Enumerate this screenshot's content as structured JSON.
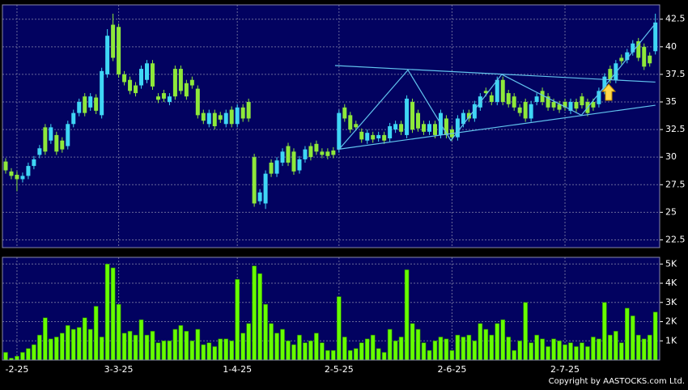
{
  "chart_data": [
    {
      "type": "candlestick",
      "ylim": [
        21.8,
        43.8
      ],
      "yticks": [
        22.5,
        25,
        27.5,
        30,
        32.5,
        35,
        37.5,
        40,
        42.5
      ],
      "grid": true,
      "up_color": "#3fd6f5",
      "down_color": "#8ee83a",
      "open": [
        29.6,
        28.7,
        28.4,
        28.0,
        28.3,
        29.2,
        30.2,
        32.7,
        31.5,
        32.0,
        31.5,
        31.0,
        33.0,
        34.0,
        35.5,
        34.5,
        35.4,
        33.8,
        37.5,
        42.0,
        41.8,
        37.5,
        37.0,
        36.5,
        36.5,
        37.0,
        38.5,
        35.5,
        35.8,
        35.0,
        38.0,
        38.0,
        36.7,
        37.0,
        36.2,
        34.0,
        33.0,
        34.0,
        33.8,
        33.0,
        34.3,
        33.0,
        34.5,
        35.0,
        30.0,
        26.0,
        25.8,
        29.5,
        28.5,
        29.5,
        31.0,
        30.5,
        28.8,
        29.8,
        31.0,
        31.2,
        30.5,
        30.5,
        30.6,
        30.7,
        34.5,
        33.8,
        33.0,
        32.3,
        31.5,
        32.0,
        31.7,
        32.0,
        31.7,
        32.5,
        33.0,
        32.0,
        35.0,
        34.0,
        33.0,
        32.3,
        33.0,
        32.0,
        33.5,
        32.5,
        31.8,
        33.0,
        34.0,
        33.5,
        34.5,
        36.0,
        35.6,
        35.0,
        37.0,
        35.8,
        35.5,
        34.5,
        35.0,
        33.5,
        35.0,
        36.0,
        35.5,
        35.0,
        34.8,
        35.0,
        34.2,
        35.0,
        35.5,
        35.0,
        35.0,
        34.8,
        36.0,
        38.0,
        37.0,
        39.0,
        38.8,
        39.5,
        40.5,
        40.0,
        39.2,
        39.6
      ],
      "high": [
        29.9,
        29.0,
        28.7,
        28.6,
        29.5,
        30.1,
        31.1,
        33.0,
        33.0,
        32.3,
        31.8,
        33.3,
        34.3,
        35.3,
        35.8,
        35.8,
        35.7,
        38.1,
        41.6,
        43.0,
        42.1,
        37.8,
        37.3,
        36.8,
        38.3,
        38.8,
        38.8,
        35.8,
        36.1,
        35.8,
        38.3,
        38.3,
        37.0,
        37.3,
        36.5,
        34.3,
        34.3,
        34.3,
        34.1,
        34.3,
        34.6,
        34.8,
        34.8,
        35.3,
        30.3,
        27.1,
        28.8,
        29.8,
        30.0,
        30.8,
        31.3,
        30.8,
        30.1,
        31.0,
        31.3,
        31.5,
        30.8,
        30.8,
        30.9,
        34.3,
        34.8,
        34.1,
        33.3,
        32.6,
        32.5,
        32.3,
        32.3,
        32.3,
        33.1,
        33.3,
        33.3,
        35.6,
        35.3,
        34.3,
        33.3,
        33.3,
        33.3,
        34.3,
        33.8,
        32.8,
        33.8,
        34.3,
        34.3,
        35.1,
        35.8,
        36.3,
        35.9,
        37.3,
        37.3,
        36.1,
        35.8,
        34.8,
        35.3,
        35.1,
        35.8,
        36.3,
        35.8,
        35.3,
        35.1,
        35.3,
        35.3,
        35.3,
        35.8,
        35.3,
        35.3,
        36.3,
        37.6,
        38.3,
        38.8,
        39.3,
        39.8,
        40.6,
        40.8,
        40.3,
        39.5,
        43.0
      ],
      "low": [
        28.5,
        28.0,
        26.9,
        27.7,
        28.0,
        28.9,
        29.9,
        30.2,
        31.2,
        30.2,
        30.4,
        30.7,
        32.7,
        33.7,
        33.7,
        34.2,
        33.9,
        33.5,
        37.2,
        38.7,
        37.2,
        36.5,
        35.7,
        35.5,
        36.2,
        36.7,
        36.1,
        34.9,
        35.0,
        34.7,
        35.2,
        35.7,
        35.2,
        36.2,
        33.5,
        33.0,
        32.7,
        32.5,
        33.1,
        32.7,
        32.7,
        32.7,
        33.2,
        33.2,
        25.5,
        25.7,
        25.3,
        28.2,
        28.2,
        29.2,
        29.2,
        28.4,
        28.5,
        29.5,
        29.7,
        30.2,
        29.9,
        29.8,
        29.9,
        30.4,
        33.2,
        32.2,
        32.4,
        31.3,
        31.2,
        31.3,
        31.4,
        31.2,
        31.4,
        32.2,
        32.0,
        31.7,
        32.2,
        32.3,
        32.0,
        32.0,
        31.7,
        31.7,
        31.7,
        31.5,
        31.5,
        32.7,
        33.2,
        33.2,
        34.2,
        35.5,
        34.7,
        34.7,
        34.7,
        34.5,
        34.2,
        33.7,
        33.2,
        33.2,
        34.7,
        34.7,
        34.2,
        34.2,
        34.0,
        34.2,
        33.9,
        34.1,
        34.4,
        33.7,
        34.2,
        34.5,
        35.7,
        36.7,
        36.7,
        38.4,
        38.5,
        39.2,
        38.7,
        37.9,
        38.2,
        39.3
      ],
      "close": [
        28.8,
        28.3,
        28.0,
        28.3,
        29.2,
        29.8,
        30.8,
        30.5,
        32.7,
        30.5,
        30.7,
        33.0,
        34.0,
        35.0,
        34.0,
        35.5,
        34.2,
        37.8,
        41.0,
        39.0,
        37.5,
        36.8,
        36.0,
        35.8,
        38.0,
        38.5,
        36.4,
        35.2,
        35.3,
        35.5,
        35.5,
        36.0,
        35.5,
        36.5,
        33.8,
        33.3,
        34.0,
        32.8,
        33.4,
        34.0,
        33.0,
        34.5,
        33.5,
        33.5,
        25.8,
        26.8,
        28.5,
        28.5,
        29.7,
        30.5,
        29.5,
        28.7,
        29.8,
        30.7,
        30.0,
        30.5,
        30.2,
        30.1,
        30.2,
        34.0,
        33.5,
        32.5,
        32.7,
        31.6,
        32.2,
        31.6,
        32.0,
        31.5,
        32.8,
        33.0,
        32.3,
        35.3,
        32.5,
        32.6,
        32.3,
        33.0,
        32.0,
        34.0,
        32.0,
        31.8,
        33.5,
        34.0,
        33.5,
        34.8,
        35.5,
        35.8,
        35.0,
        37.0,
        35.0,
        34.8,
        34.5,
        34.0,
        33.5,
        34.8,
        35.5,
        35.0,
        34.5,
        34.5,
        34.3,
        34.5,
        35.0,
        34.4,
        34.7,
        34.0,
        34.5,
        36.0,
        37.3,
        37.0,
        38.5,
        38.7,
        39.5,
        40.3,
        39.0,
        38.2,
        38.5,
        42.2
      ],
      "trendline_color": "#62c4ee",
      "trendlines": [
        {
          "points": [
            [
              58.3,
              38.3
            ],
            [
              115,
              36.8
            ]
          ]
        },
        {
          "points": [
            [
              58.7,
              30.7
            ],
            [
              115,
              34.7
            ]
          ]
        },
        {
          "points": [
            [
              59,
              30.7
            ],
            [
              71.2,
              37.9
            ],
            [
              78.8,
              31.5
            ],
            [
              87.8,
              37.5
            ],
            [
              101.9,
              33.8
            ],
            [
              115,
              42.1
            ]
          ]
        }
      ]
    },
    {
      "type": "bar",
      "color": "#66ff00",
      "ylim": [
        0,
        5350
      ],
      "yticks": [
        {
          "value": 1000,
          "label": "1K"
        },
        {
          "value": 2000,
          "label": "2K"
        },
        {
          "value": 3000,
          "label": "3K"
        },
        {
          "value": 4000,
          "label": "4K"
        },
        {
          "value": 5000,
          "label": "5K"
        }
      ],
      "grid": true,
      "categories": [
        null,
        null,
        "-2-25",
        null,
        null,
        null,
        null,
        null,
        null,
        null,
        null,
        null,
        null,
        null,
        null,
        null,
        null,
        null,
        null,
        null,
        "3-3-25",
        null,
        null,
        null,
        null,
        null,
        null,
        null,
        null,
        null,
        null,
        null,
        null,
        null,
        null,
        null,
        null,
        null,
        null,
        null,
        null,
        "1-4-25",
        null,
        null,
        null,
        null,
        null,
        null,
        null,
        null,
        null,
        null,
        null,
        null,
        null,
        null,
        null,
        null,
        null,
        "2-5-25",
        null,
        null,
        null,
        null,
        null,
        null,
        null,
        null,
        null,
        null,
        null,
        null,
        null,
        null,
        null,
        null,
        null,
        null,
        null,
        "2-6-25",
        null,
        null,
        null,
        null,
        null,
        null,
        null,
        null,
        null,
        null,
        null,
        null,
        null,
        null,
        null,
        null,
        null,
        null,
        null,
        "2-7-25",
        null,
        null,
        null,
        null,
        null,
        null,
        null,
        null,
        null,
        null,
        null,
        null,
        null,
        null,
        null,
        null
      ],
      "values": [
        400,
        100,
        200,
        400,
        600,
        800,
        1300,
        2200,
        1100,
        1200,
        1400,
        1800,
        1600,
        1700,
        2200,
        1600,
        2800,
        1200,
        5000,
        4800,
        2900,
        1400,
        1500,
        1300,
        2100,
        1300,
        1500,
        900,
        1000,
        1000,
        1600,
        1800,
        1500,
        1000,
        1600,
        800,
        900,
        700,
        1100,
        1100,
        1000,
        4200,
        1400,
        1900,
        4900,
        4500,
        2900,
        1900,
        1400,
        1600,
        1000,
        800,
        1300,
        900,
        1000,
        1400,
        900,
        500,
        500,
        3300,
        1200,
        500,
        600,
        900,
        1100,
        1300,
        600,
        400,
        1600,
        1000,
        1200,
        4700,
        1900,
        1600,
        900,
        500,
        1000,
        1200,
        1100,
        500,
        1300,
        1200,
        1300,
        1000,
        1900,
        1600,
        1300,
        1900,
        2100,
        1200,
        500,
        1000,
        3000,
        900,
        1300,
        1100,
        700,
        1100,
        1000,
        800,
        900,
        700,
        900,
        700,
        1200,
        1100,
        3000,
        1300,
        1500,
        900,
        2700,
        2300,
        1300,
        1100,
        1300,
        2500
      ]
    }
  ],
  "copyright": "Copyright by AASTOCKS.com Ltd."
}
